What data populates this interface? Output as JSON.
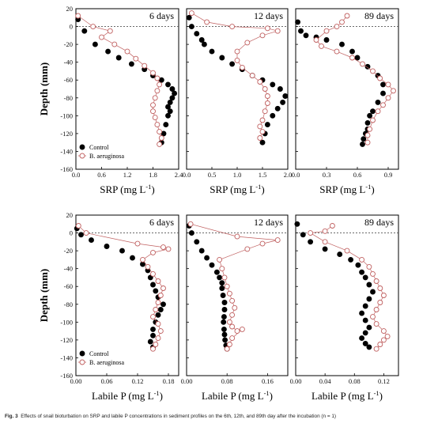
{
  "caption": {
    "label": "Fig. 3",
    "text": "Effects of snail bioturbation on SRP and labile P concentrations in sediment profiles on the 6th, 12th, and 89th day after the incubation (n = 1)"
  },
  "colors": {
    "control": "#000000",
    "treatment": "#c06060",
    "frame": "#000000",
    "zero_line": "#555555"
  },
  "chart_data": [
    {
      "type": "scatter",
      "panel": "SRP 6 days",
      "annotation": "6 days",
      "xlabel": "SRP (mg L-1)",
      "ylabel": "Depth (mm)",
      "xlim": [
        0,
        2.4
      ],
      "ylim": [
        -160,
        20
      ],
      "xticks": [
        "0.0",
        "0.6",
        "1.2",
        "1.8",
        "2.4"
      ],
      "yticks": [
        "20",
        "0",
        "-20",
        "-40",
        "-60",
        "-80",
        "-100",
        "-120",
        "-140",
        "-160"
      ],
      "legend": "bottom-left",
      "series": [
        {
          "name": "Control",
          "x": [
            0.05,
            0.2,
            0.45,
            0.75,
            1.0,
            1.3,
            1.6,
            1.8,
            2.0,
            2.15,
            2.25,
            2.3,
            2.25,
            2.2,
            2.15,
            2.2,
            2.15,
            2.1,
            2.05,
            2.0
          ],
          "y": [
            8,
            -5,
            -20,
            -28,
            -35,
            -42,
            -48,
            -55,
            -60,
            -65,
            -70,
            -75,
            -80,
            -85,
            -90,
            -95,
            -100,
            -110,
            -120,
            -130
          ]
        },
        {
          "name": "B. aeruginosa",
          "x": [
            0.05,
            0.4,
            0.8,
            0.6,
            0.9,
            1.2,
            1.4,
            1.6,
            1.8,
            1.9,
            1.95,
            1.9,
            1.85,
            1.8,
            1.8,
            1.85,
            1.9,
            1.95,
            2.0,
            1.95
          ],
          "y": [
            12,
            0,
            -5,
            -12,
            -20,
            -28,
            -36,
            -44,
            -52,
            -58,
            -65,
            -72,
            -80,
            -88,
            -95,
            -102,
            -110,
            -118,
            -125,
            -132
          ]
        }
      ]
    },
    {
      "type": "scatter",
      "panel": "SRP 12 days",
      "annotation": "12 days",
      "xlabel": "SRP (mg L-1)",
      "ylabel": "",
      "xlim": [
        0,
        2.0
      ],
      "ylim": [
        -160,
        20
      ],
      "xticks": [
        "0.0",
        "0.5",
        "1.0",
        "1.5",
        "2.0"
      ],
      "yticks": [],
      "series": [
        {
          "name": "Control",
          "x": [
            0.05,
            0.1,
            0.2,
            0.3,
            0.35,
            0.5,
            0.7,
            0.9,
            1.1,
            1.3,
            1.5,
            1.7,
            1.85,
            1.95,
            1.9,
            1.8,
            1.7,
            1.6,
            1.55,
            1.5
          ],
          "y": [
            10,
            0,
            -8,
            -15,
            -20,
            -28,
            -35,
            -42,
            -48,
            -55,
            -60,
            -65,
            -70,
            -78,
            -85,
            -92,
            -100,
            -110,
            -120,
            -130
          ]
        },
        {
          "name": "B. aeruginosa",
          "x": [
            0.1,
            0.4,
            0.9,
            1.6,
            1.8,
            1.5,
            1.2,
            1.0,
            1.0,
            1.1,
            1.3,
            1.45,
            1.55,
            1.6,
            1.6,
            1.55,
            1.5,
            1.45,
            1.5,
            1.45
          ],
          "y": [
            15,
            5,
            0,
            -2,
            -5,
            -10,
            -18,
            -28,
            -38,
            -46,
            -55,
            -62,
            -70,
            -78,
            -86,
            -95,
            -105,
            -112,
            -118,
            -125
          ]
        }
      ]
    },
    {
      "type": "scatter",
      "panel": "SRP 89 days",
      "annotation": "89 days",
      "xlabel": "SRP (mg L-1)",
      "ylabel": "",
      "xlim": [
        0,
        1.0
      ],
      "ylim": [
        -160,
        20
      ],
      "xticks": [
        "0.0",
        "0.3",
        "0.6",
        "0.9"
      ],
      "yticks": [],
      "series": [
        {
          "name": "Control",
          "x": [
            0.02,
            0.05,
            0.1,
            0.2,
            0.3,
            0.45,
            0.55,
            0.6,
            0.7,
            0.8,
            0.85,
            0.85,
            0.8,
            0.75,
            0.72,
            0.7,
            0.7,
            0.68,
            0.66,
            0.65
          ],
          "y": [
            5,
            -5,
            -10,
            -12,
            -15,
            -20,
            -28,
            -35,
            -45,
            -55,
            -65,
            -75,
            -85,
            -95,
            -100,
            -108,
            -115,
            -120,
            -126,
            -132
          ]
        },
        {
          "name": "B. aeruginosa",
          "x": [
            0.5,
            0.45,
            0.4,
            0.3,
            0.2,
            0.25,
            0.4,
            0.55,
            0.65,
            0.75,
            0.82,
            0.9,
            0.95,
            0.9,
            0.85,
            0.8,
            0.75,
            0.72,
            0.7,
            0.7
          ],
          "y": [
            12,
            5,
            0,
            -5,
            -15,
            -22,
            -28,
            -35,
            -42,
            -50,
            -58,
            -65,
            -72,
            -80,
            -88,
            -95,
            -105,
            -115,
            -122,
            -130
          ]
        }
      ]
    },
    {
      "type": "scatter",
      "panel": "Labile P 6 days",
      "annotation": "6 days",
      "xlabel": "Labile P (mg L-1)",
      "ylabel": "Depth (mm)",
      "xlim": [
        0,
        0.2
      ],
      "ylim": [
        -160,
        20
      ],
      "xticks": [
        "0.00",
        "0.06",
        "0.12",
        "0.18"
      ],
      "yticks": [
        "20",
        "0",
        "-20",
        "-40",
        "-60",
        "-80",
        "-100",
        "-120",
        "-140",
        "-160"
      ],
      "legend": "bottom-left",
      "series": [
        {
          "name": "Control",
          "x": [
            0.002,
            0.01,
            0.03,
            0.06,
            0.09,
            0.11,
            0.13,
            0.14,
            0.145,
            0.15,
            0.155,
            0.16,
            0.17,
            0.165,
            0.16,
            0.155,
            0.15,
            0.15,
            0.145,
            0.15
          ],
          "y": [
            5,
            -2,
            -8,
            -15,
            -20,
            -28,
            -35,
            -42,
            -50,
            -58,
            -65,
            -72,
            -80,
            -86,
            -92,
            -100,
            -108,
            -115,
            -122,
            -128
          ]
        },
        {
          "name": "B. aeruginosa",
          "x": [
            0.005,
            0.02,
            0.12,
            0.17,
            0.18,
            0.15,
            0.13,
            0.14,
            0.15,
            0.16,
            0.17,
            0.165,
            0.16,
            0.155,
            0.15,
            0.16,
            0.165,
            0.16,
            0.155,
            0.15
          ],
          "y": [
            8,
            0,
            -12,
            -16,
            -18,
            -22,
            -30,
            -38,
            -46,
            -54,
            -62,
            -70,
            -78,
            -86,
            -94,
            -102,
            -110,
            -118,
            -125,
            -130
          ]
        }
      ]
    },
    {
      "type": "scatter",
      "panel": "Labile P 12 days",
      "annotation": "12 days",
      "xlabel": "Labile P (mg L-1)",
      "ylabel": "",
      "xlim": [
        0,
        0.2
      ],
      "ylim": [
        -160,
        20
      ],
      "xticks": [
        "0.00",
        "0.08",
        "0.16"
      ],
      "yticks": [],
      "series": [
        {
          "name": "Control",
          "x": [
            0.005,
            0.01,
            0.02,
            0.03,
            0.04,
            0.05,
            0.06,
            0.065,
            0.07,
            0.07,
            0.072,
            0.075,
            0.075,
            0.074,
            0.073,
            0.074,
            0.075,
            0.076,
            0.078,
            0.08
          ],
          "y": [
            8,
            0,
            -10,
            -20,
            -28,
            -36,
            -44,
            -50,
            -56,
            -62,
            -70,
            -78,
            -86,
            -94,
            -100,
            -108,
            -114,
            -120,
            -126,
            -130
          ]
        },
        {
          "name": "B. aeruginosa",
          "x": [
            0.008,
            0.1,
            0.18,
            0.15,
            0.12,
            0.065,
            0.07,
            0.075,
            0.08,
            0.085,
            0.09,
            0.095,
            0.09,
            0.085,
            0.09,
            0.1,
            0.11,
            0.09,
            0.085,
            0.08
          ],
          "y": [
            10,
            -4,
            -8,
            -12,
            -18,
            -30,
            -40,
            -50,
            -60,
            -68,
            -76,
            -84,
            -92,
            -100,
            -105,
            -110,
            -108,
            -118,
            -125,
            -130
          ]
        }
      ]
    },
    {
      "type": "scatter",
      "panel": "Labile P 89 days",
      "annotation": "89 days",
      "xlabel": "Labile P (mg L-1)",
      "ylabel": "",
      "xlim": [
        0,
        0.14
      ],
      "ylim": [
        -160,
        20
      ],
      "xticks": [
        "0.00",
        "0.04",
        "0.08",
        "0.12"
      ],
      "yticks": [],
      "series": [
        {
          "name": "Control",
          "x": [
            0.002,
            0.01,
            0.02,
            0.04,
            0.06,
            0.075,
            0.085,
            0.09,
            0.095,
            0.1,
            0.105,
            0.1,
            0.095,
            0.09,
            0.095,
            0.1,
            0.095,
            0.09,
            0.095,
            0.1
          ],
          "y": [
            10,
            -2,
            -10,
            -18,
            -24,
            -30,
            -36,
            -44,
            -50,
            -58,
            -66,
            -74,
            -82,
            -90,
            -98,
            -106,
            -112,
            -118,
            -124,
            -128
          ]
        },
        {
          "name": "B. aeruginosa",
          "x": [
            0.05,
            0.04,
            0.02,
            0.04,
            0.07,
            0.09,
            0.1,
            0.105,
            0.11,
            0.115,
            0.12,
            0.115,
            0.11,
            0.105,
            0.11,
            0.12,
            0.125,
            0.12,
            0.115,
            0.11
          ],
          "y": [
            8,
            2,
            0,
            -10,
            -20,
            -30,
            -38,
            -46,
            -54,
            -62,
            -70,
            -78,
            -86,
            -94,
            -102,
            -110,
            -116,
            -120,
            -125,
            -130
          ]
        }
      ]
    }
  ]
}
